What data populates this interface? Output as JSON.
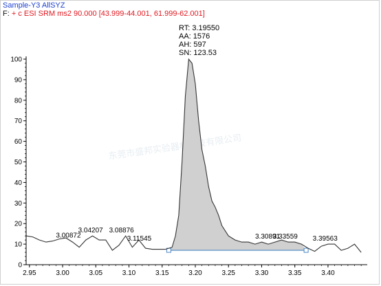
{
  "header": {
    "sample_line": "Sample-Y3   AllSYZ",
    "trace_prefix": "F:",
    "trace_text": "+ c ESI SRM ms2 90.000 [43.999-44.001, 61.999-62.001]"
  },
  "peak_info": {
    "rt": "RT: 3.19550",
    "aa": "AA: 1576",
    "ah": "AH: 597",
    "sn": "SN: 123.53"
  },
  "watermark": "东莞市盛邦实验器材科技有限公司",
  "chart_data": {
    "type": "area",
    "title": "",
    "xlabel": "",
    "ylabel": "",
    "xlim": [
      2.945,
      3.455
    ],
    "ylim": [
      0,
      100
    ],
    "x_ticks": [
      "2.95",
      "3.00",
      "3.05",
      "3.10",
      "3.15",
      "3.20",
      "3.25",
      "3.30",
      "3.35",
      "3.40"
    ],
    "y_ticks": [
      "0",
      "10",
      "20",
      "30",
      "40",
      "50",
      "60",
      "70",
      "80",
      "90",
      "100"
    ],
    "grid": false,
    "legend": "none",
    "series": [
      {
        "x": [
          2.945,
          2.955,
          2.965,
          2.975,
          2.985,
          2.995,
          3.005,
          3.015,
          3.025,
          3.035,
          3.045,
          3.055,
          3.065,
          3.075,
          3.085,
          3.095,
          3.105,
          3.115,
          3.125,
          3.135,
          3.145,
          3.155,
          3.16,
          3.165,
          3.17,
          3.175,
          3.18,
          3.185,
          3.19,
          3.195,
          3.2,
          3.205,
          3.21,
          3.215,
          3.22,
          3.225,
          3.23,
          3.235,
          3.24,
          3.25,
          3.26,
          3.27,
          3.28,
          3.29,
          3.3,
          3.31,
          3.32,
          3.33,
          3.34,
          3.35,
          3.36,
          3.37,
          3.38,
          3.39,
          3.4,
          3.41,
          3.42,
          3.43,
          3.44,
          3.45
        ],
        "y": [
          14,
          13.5,
          12,
          11,
          11.5,
          12.5,
          13,
          11,
          8.5,
          12,
          14,
          12,
          12,
          7,
          9.5,
          14,
          8.5,
          12,
          8,
          7.5,
          7.5,
          7.5,
          8,
          8.5,
          14,
          24,
          50,
          82,
          100,
          98,
          88,
          70,
          56,
          48,
          38,
          31,
          28,
          24,
          19,
          14,
          12,
          11,
          11,
          10,
          11,
          10,
          11,
          12,
          11,
          11,
          10,
          8,
          6.5,
          9,
          10,
          10,
          7,
          8,
          10,
          6
        ]
      }
    ],
    "peak_labels": [
      {
        "x": 3.00872,
        "y": 11.5,
        "label": "3.00872"
      },
      {
        "x": 3.04207,
        "y": 14,
        "label": "3.04207"
      },
      {
        "x": 3.08876,
        "y": 14,
        "label": "3.08876"
      },
      {
        "x": 3.11545,
        "y": 10,
        "label": "3.11545"
      },
      {
        "x": 3.30891,
        "y": 11,
        "label": "3.30891"
      },
      {
        "x": 3.33559,
        "y": 11,
        "label": "3.33559"
      },
      {
        "x": 3.39563,
        "y": 10,
        "label": "3.39563"
      }
    ],
    "integration": {
      "start_x": 3.16,
      "end_x": 3.367,
      "start_y": 7.0,
      "end_y": 7.0
    },
    "colors": {
      "line": "#333333",
      "fill": "#d0d0d0",
      "baseline": "#4a86c6",
      "axis": "#000000",
      "label": "#000000"
    }
  }
}
